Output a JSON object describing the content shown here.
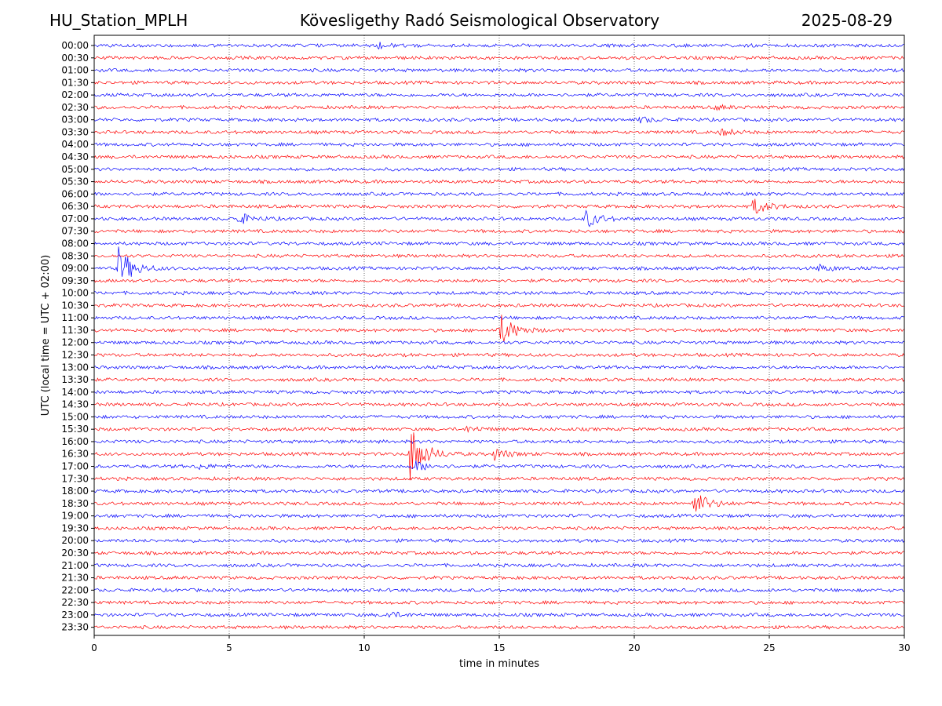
{
  "header": {
    "station": "HU_Station_MPLH",
    "title": "Kövesligethy Radó Seismological Observatory",
    "date": "2025-08-29"
  },
  "chart_data": {
    "type": "line",
    "subtype": "helicorder",
    "xlabel": "time in minutes",
    "ylabel": "UTC (local time = UTC + 02:00)",
    "xlim": [
      0,
      30
    ],
    "x_ticks": [
      0,
      5,
      10,
      15,
      20,
      25,
      30
    ],
    "row_labels": [
      "00:00",
      "00:30",
      "01:00",
      "01:30",
      "02:00",
      "02:30",
      "03:00",
      "03:30",
      "04:00",
      "04:30",
      "05:00",
      "05:30",
      "06:00",
      "06:30",
      "07:00",
      "07:30",
      "08:00",
      "08:30",
      "09:00",
      "09:30",
      "10:00",
      "10:30",
      "11:00",
      "11:30",
      "12:00",
      "12:30",
      "13:00",
      "13:30",
      "14:00",
      "14:30",
      "15:00",
      "15:30",
      "16:00",
      "16:30",
      "17:00",
      "17:30",
      "18:00",
      "18:30",
      "19:00",
      "19:30",
      "20:00",
      "20:30",
      "21:00",
      "21:30",
      "22:00",
      "22:30",
      "23:00",
      "23:30"
    ],
    "trace_colors": [
      "#0000ff",
      "#ff0000"
    ],
    "grid": "vertical dotted at x ticks",
    "events": [
      {
        "row": "00:00",
        "minute": 10.5,
        "amplitude": 0.4
      },
      {
        "row": "02:30",
        "minute": 23.0,
        "amplitude": 0.3
      },
      {
        "row": "03:00",
        "minute": 20.2,
        "amplitude": 0.4
      },
      {
        "row": "03:30",
        "minute": 23.2,
        "amplitude": 0.5
      },
      {
        "row": "06:30",
        "minute": 24.4,
        "amplitude": 1.3
      },
      {
        "row": "07:00",
        "minute": 5.3,
        "amplitude": 0.9
      },
      {
        "row": "07:00",
        "minute": 18.2,
        "amplitude": 1.3
      },
      {
        "row": "09:00",
        "minute": 0.9,
        "amplitude": 3.0
      },
      {
        "row": "09:00",
        "minute": 26.8,
        "amplitude": 0.5
      },
      {
        "row": "11:30",
        "minute": 15.0,
        "amplitude": 2.6
      },
      {
        "row": "15:30",
        "minute": 13.8,
        "amplitude": 0.4
      },
      {
        "row": "16:30",
        "minute": 11.7,
        "amplitude": 4.3
      },
      {
        "row": "16:30",
        "minute": 14.8,
        "amplitude": 0.9
      },
      {
        "row": "17:00",
        "minute": 11.8,
        "amplitude": 0.9
      },
      {
        "row": "17:00",
        "minute": 3.8,
        "amplitude": 0.4
      },
      {
        "row": "18:30",
        "minute": 22.2,
        "amplitude": 1.9
      },
      {
        "row": "23:00",
        "minute": 10.8,
        "amplitude": 0.5
      }
    ]
  }
}
